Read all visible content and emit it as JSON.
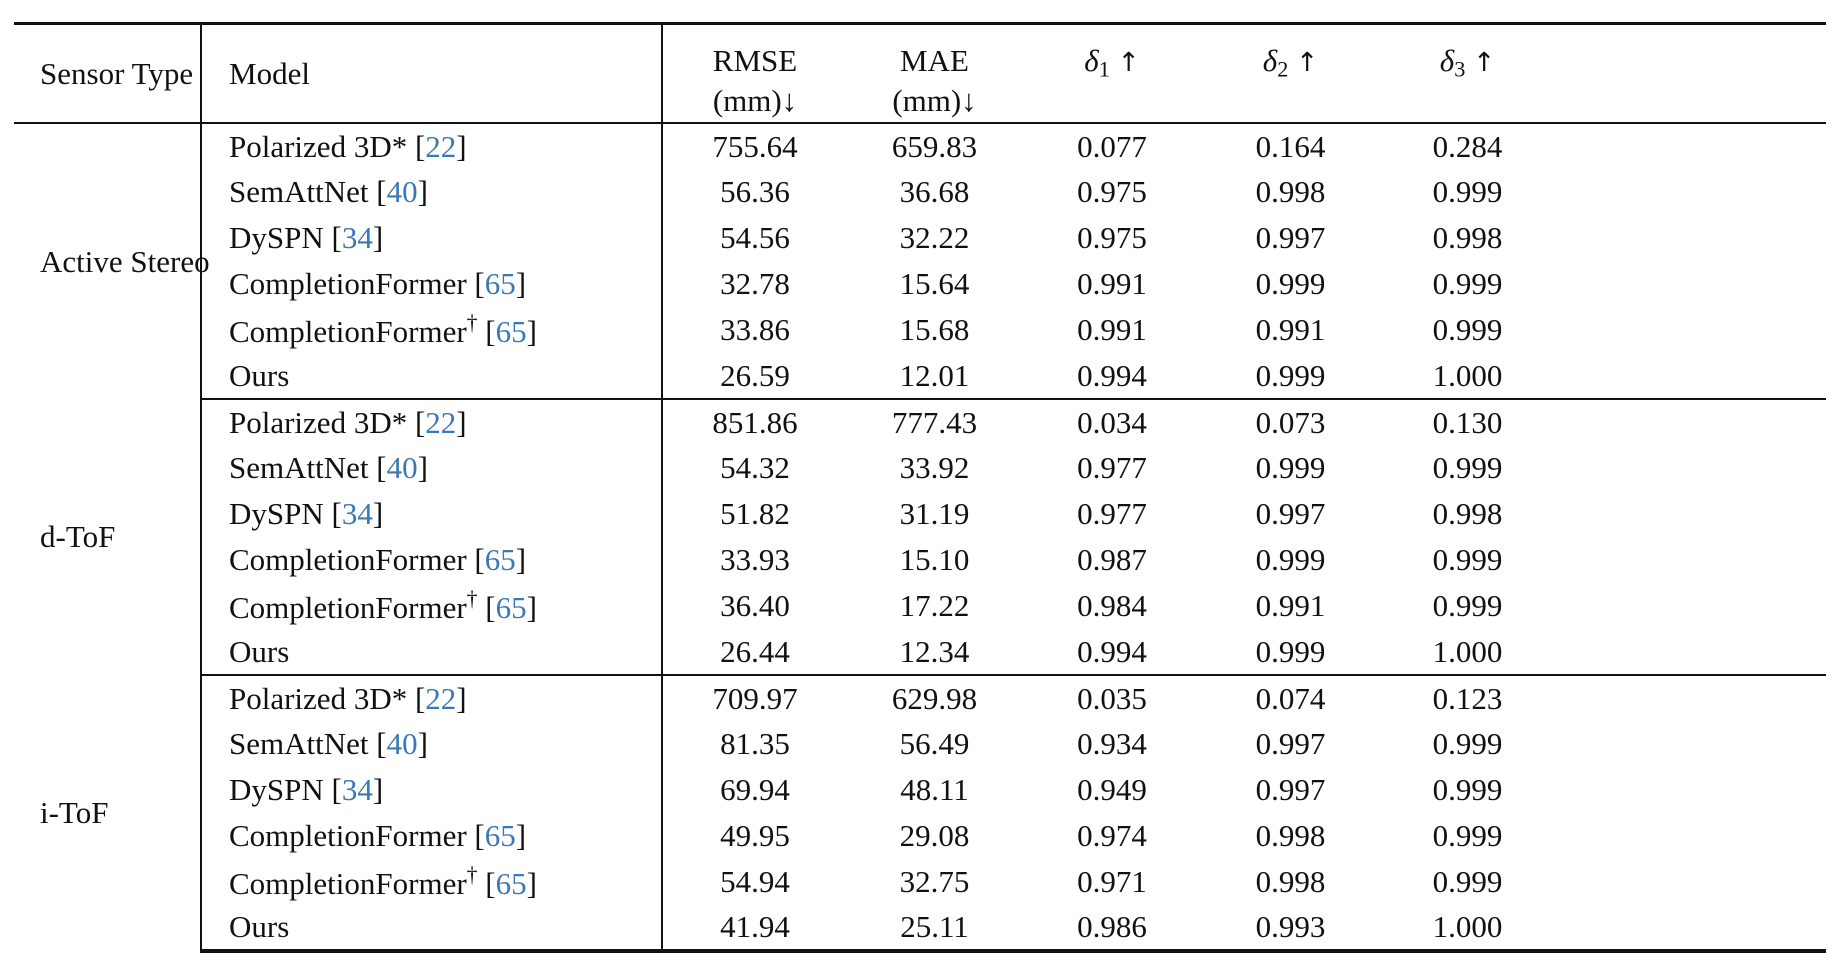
{
  "table": {
    "headers": {
      "sensor_type": "Sensor Type",
      "model": "Model",
      "rmse_line1": "RMSE",
      "rmse_line2": "(mm)↓",
      "mae_line1": "MAE",
      "mae_line2": "(mm)↓",
      "delta1_symbol": "δ",
      "delta1_sub": "1",
      "delta1_arrow": "↑",
      "delta2_symbol": "δ",
      "delta2_sub": "2",
      "delta2_arrow": "↑",
      "delta3_symbol": "δ",
      "delta3_sub": "3",
      "delta3_arrow": "↑"
    },
    "groups": [
      {
        "sensor": "Active Stereo",
        "rows": [
          {
            "name": "Polarized 3D*",
            "dagger": "",
            "ref": "22",
            "rmse": "755.64",
            "mae": "659.83",
            "d1": "0.077",
            "d2": "0.164",
            "d3": "0.284"
          },
          {
            "name": "SemAttNet",
            "dagger": "",
            "ref": "40",
            "rmse": "56.36",
            "mae": "36.68",
            "d1": "0.975",
            "d2": "0.998",
            "d3": "0.999"
          },
          {
            "name": "DySPN",
            "dagger": "",
            "ref": "34",
            "rmse": "54.56",
            "mae": "32.22",
            "d1": "0.975",
            "d2": "0.997",
            "d3": "0.998"
          },
          {
            "name": "CompletionFormer",
            "dagger": "",
            "ref": "65",
            "rmse": "32.78",
            "mae": "15.64",
            "d1": "0.991",
            "d2": "0.999",
            "d3": "0.999"
          },
          {
            "name": "CompletionFormer",
            "dagger": "†",
            "ref": "65",
            "rmse": "33.86",
            "mae": "15.68",
            "d1": "0.991",
            "d2": "0.991",
            "d3": "0.999"
          },
          {
            "name": "Ours",
            "dagger": "",
            "ref": "",
            "rmse": "26.59",
            "mae": "12.01",
            "d1": "0.994",
            "d2": "0.999",
            "d3": "1.000"
          }
        ]
      },
      {
        "sensor": "d-ToF",
        "rows": [
          {
            "name": "Polarized 3D*",
            "dagger": "",
            "ref": "22",
            "rmse": "851.86",
            "mae": "777.43",
            "d1": "0.034",
            "d2": "0.073",
            "d3": "0.130"
          },
          {
            "name": "SemAttNet",
            "dagger": "",
            "ref": "40",
            "rmse": "54.32",
            "mae": "33.92",
            "d1": "0.977",
            "d2": "0.999",
            "d3": "0.999"
          },
          {
            "name": "DySPN",
            "dagger": "",
            "ref": "34",
            "rmse": "51.82",
            "mae": "31.19",
            "d1": "0.977",
            "d2": "0.997",
            "d3": "0.998"
          },
          {
            "name": "CompletionFormer",
            "dagger": "",
            "ref": "65",
            "rmse": "33.93",
            "mae": "15.10",
            "d1": "0.987",
            "d2": "0.999",
            "d3": "0.999"
          },
          {
            "name": "CompletionFormer",
            "dagger": "†",
            "ref": "65",
            "rmse": "36.40",
            "mae": "17.22",
            "d1": "0.984",
            "d2": "0.991",
            "d3": "0.999"
          },
          {
            "name": "Ours",
            "dagger": "",
            "ref": "",
            "rmse": "26.44",
            "mae": "12.34",
            "d1": "0.994",
            "d2": "0.999",
            "d3": "1.000"
          }
        ]
      },
      {
        "sensor": "i-ToF",
        "rows": [
          {
            "name": "Polarized 3D*",
            "dagger": "",
            "ref": "22",
            "rmse": "709.97",
            "mae": "629.98",
            "d1": "0.035",
            "d2": "0.074",
            "d3": "0.123"
          },
          {
            "name": "SemAttNet",
            "dagger": "",
            "ref": "40",
            "rmse": "81.35",
            "mae": "56.49",
            "d1": "0.934",
            "d2": "0.997",
            "d3": "0.999"
          },
          {
            "name": "DySPN",
            "dagger": "",
            "ref": "34",
            "rmse": "69.94",
            "mae": "48.11",
            "d1": "0.949",
            "d2": "0.997",
            "d3": "0.999"
          },
          {
            "name": "CompletionFormer",
            "dagger": "",
            "ref": "65",
            "rmse": "49.95",
            "mae": "29.08",
            "d1": "0.974",
            "d2": "0.998",
            "d3": "0.999"
          },
          {
            "name": "CompletionFormer",
            "dagger": "†",
            "ref": "65",
            "rmse": "54.94",
            "mae": "32.75",
            "d1": "0.971",
            "d2": "0.998",
            "d3": "0.999"
          },
          {
            "name": "Ours",
            "dagger": "",
            "ref": "",
            "rmse": "41.94",
            "mae": "25.11",
            "d1": "0.986",
            "d2": "0.993",
            "d3": "1.000"
          }
        ]
      }
    ],
    "colors": {
      "text": "#111111",
      "citation": "#3a78b6",
      "rule": "#111111"
    }
  }
}
